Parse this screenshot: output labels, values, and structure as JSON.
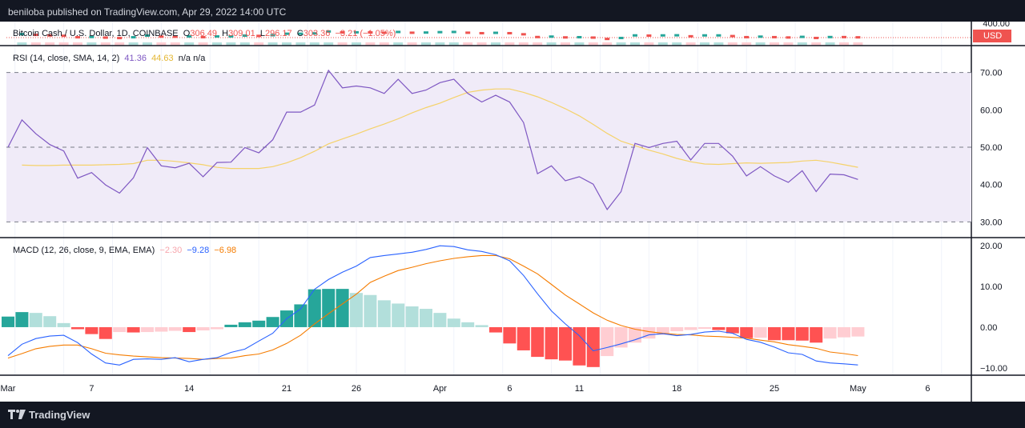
{
  "header": {
    "publish_line": "beniloba published on TradingView.com, Apr 29, 2022 14:00 UTC"
  },
  "price_pane": {
    "symbol": "Bitcoin Cash / U.S. Dollar, 1D, COINBASE",
    "open_label": "O",
    "open": "306.49",
    "high_label": "H",
    "high": "309.01",
    "low_label": "L",
    "low": "296.17",
    "close_label": "C",
    "close": "303.36",
    "change": "−3.21 (−1.05%)",
    "axis_top_label": "400.00",
    "currency": "USD"
  },
  "rsi_pane": {
    "label": "RSI (14, close, SMA, 14, 2)",
    "rsi_value": "41.36",
    "ma_value": "44.63",
    "extra": "n/a  n/a"
  },
  "macd_pane": {
    "label": "MACD (12, 26, close, 9, EMA, EMA)",
    "hist_value": "−2.30",
    "macd_value": "−9.28",
    "signal_value": "−6.98"
  },
  "footer": {
    "brand": "TradingView"
  },
  "colors": {
    "rsi_line": "#7e57c2",
    "rsi_ma": "#f5d26a",
    "rsi_band": "#f0ebf8",
    "macd_line": "#2962ff",
    "signal_line": "#f57c00",
    "hist_pos_strong": "#26a69a",
    "hist_pos_weak": "#b2dfdb",
    "hist_neg_strong": "#ff5252",
    "hist_neg_weak": "#ffcdd2",
    "candle_up": "#26a69a",
    "candle_down": "#ef5350"
  },
  "chart_data": [
    {
      "type": "line",
      "title": "RSI (14, close, SMA, 14, 2)",
      "x_tick_labels": [
        "Mar",
        "7",
        "14",
        "21",
        "26",
        "Apr",
        "6",
        "11",
        "18",
        "25",
        "May",
        "6"
      ],
      "x_tick_index": [
        0,
        6,
        13,
        20,
        25,
        31,
        36,
        41,
        48,
        55,
        61,
        66
      ],
      "y_ticks": [
        "70.00",
        "60.00",
        "50.00",
        "40.00",
        "30.00"
      ],
      "ylim": [
        26,
        77
      ],
      "band": [
        30,
        70
      ],
      "midline": 50,
      "series": [
        {
          "name": "RSI",
          "values": [
            50,
            57.3,
            53.6,
            50.7,
            49,
            41.7,
            43.2,
            39.9,
            37.7,
            41.8,
            49.9,
            45,
            44.5,
            45.7,
            42.1,
            45.9,
            46,
            49.9,
            48.5,
            52,
            59.4,
            59.4,
            61.3,
            70.6,
            65.9,
            66.4,
            65.9,
            64.4,
            68.2,
            64.4,
            65.3,
            67.3,
            68.2,
            64.4,
            62.1,
            63.9,
            62.1,
            56.6,
            42.9,
            45,
            41,
            42.1,
            40.1,
            33.3,
            38.1,
            51,
            49.9,
            51,
            51.6,
            46.6,
            51,
            51,
            47.6,
            42.3,
            44.8,
            42.3,
            40.6,
            43.7,
            38.1,
            42.8,
            42.6,
            41.36
          ]
        },
        {
          "name": "RSI-based MA",
          "values": [
            null,
            45.2,
            45.1,
            45.1,
            45.2,
            45.2,
            45.2,
            45.3,
            45.4,
            45.6,
            46.5,
            46.5,
            46.2,
            45.8,
            45.3,
            44.6,
            44.3,
            44.3,
            44.3,
            44.8,
            45.8,
            47.2,
            48.9,
            50.9,
            52.2,
            53.5,
            54.9,
            56.2,
            57.6,
            59.2,
            60.6,
            61.8,
            63.3,
            64.7,
            65.3,
            65.6,
            65.6,
            64.7,
            63.5,
            62,
            60.3,
            58.4,
            56.1,
            53.7,
            51.6,
            50.4,
            49.2,
            48.2,
            47,
            46.1,
            45.5,
            45.4,
            45.6,
            45.8,
            45.7,
            45.8,
            45.9,
            46.3,
            46.5,
            46,
            45.3,
            44.63
          ]
        }
      ]
    },
    {
      "type": "bar",
      "title": "MACD (12, 26, close, 9, EMA, EMA)",
      "x_tick_labels": [
        "Mar",
        "7",
        "14",
        "21",
        "26",
        "Apr",
        "6",
        "11",
        "18",
        "25",
        "May",
        "6"
      ],
      "x_tick_index": [
        0,
        6,
        13,
        20,
        25,
        31,
        36,
        41,
        48,
        55,
        61,
        66
      ],
      "y_ticks": [
        "20.00",
        "10.00",
        "0.00",
        "−10.00"
      ],
      "ylim": [
        -11.8,
        22
      ],
      "series": [
        {
          "name": "Histogram",
          "values": [
            2.6,
            3.7,
            3.5,
            2.7,
            1,
            -0.5,
            -1.7,
            -2.9,
            -1.2,
            -1.3,
            -1.2,
            -1.1,
            -0.9,
            -1.2,
            -0.8,
            -0.5,
            0.6,
            1.2,
            1.6,
            2.5,
            4.1,
            5.6,
            9.3,
            9.4,
            9.4,
            8.4,
            7.9,
            6.6,
            5.8,
            5.1,
            4.5,
            3.5,
            2.1,
            1.2,
            0.5,
            -1.3,
            -4,
            -5.7,
            -7.3,
            -7.9,
            -8.2,
            -9.4,
            -9.8,
            -7.1,
            -5,
            -3.8,
            -2.8,
            -1.9,
            -1,
            -0.7,
            -0.4,
            -0.7,
            -1.5,
            -2.7,
            -2.6,
            -3.2,
            -3.2,
            -3.3,
            -3.8,
            -2.8,
            -2.5,
            -2.3
          ]
        },
        {
          "name": "MACD",
          "values": [
            -7,
            -4.2,
            -2.8,
            -2.2,
            -2,
            -3.8,
            -6.6,
            -8.8,
            -9.3,
            -7.9,
            -7.8,
            -7.9,
            -7.5,
            -8.5,
            -7.9,
            -7.5,
            -6.2,
            -5.4,
            -3.4,
            -1.5,
            2.1,
            4.5,
            9.3,
            11.7,
            13.5,
            15,
            17.1,
            17.6,
            18,
            18.4,
            19.1,
            20,
            19.8,
            19,
            18.6,
            17.8,
            16.3,
            12.7,
            8.2,
            4,
            0.8,
            -2.1,
            -5.8,
            -5,
            -4.1,
            -3.1,
            -1.9,
            -1.6,
            -2.1,
            -1.8,
            -1.2,
            -1,
            -1.5,
            -3,
            -3.7,
            -4.9,
            -6.3,
            -6.7,
            -8.3,
            -8.8,
            -9,
            -9.28
          ]
        },
        {
          "name": "Signal",
          "values": [
            -7.6,
            -6.5,
            -5.3,
            -4.7,
            -4.4,
            -4.4,
            -5.3,
            -6.4,
            -6.8,
            -7.1,
            -7.3,
            -7.5,
            -7.6,
            -7.7,
            -7.9,
            -7.7,
            -7.6,
            -7,
            -6.6,
            -5.6,
            -4,
            -2,
            0.8,
            3.3,
            5.7,
            8.1,
            11,
            12.5,
            13.9,
            14.7,
            15.6,
            16.3,
            16.9,
            17.3,
            17.6,
            17.6,
            16.8,
            15,
            13.1,
            10.5,
            7.9,
            5.7,
            3.5,
            1.7,
            0.4,
            -0.5,
            -1.1,
            -1.5,
            -1.8,
            -1.9,
            -2.2,
            -2.3,
            -2.5,
            -2.7,
            -3.2,
            -3.6,
            -4.3,
            -4.7,
            -5.2,
            -6.1,
            -6.5,
            -6.98
          ]
        }
      ]
    }
  ]
}
